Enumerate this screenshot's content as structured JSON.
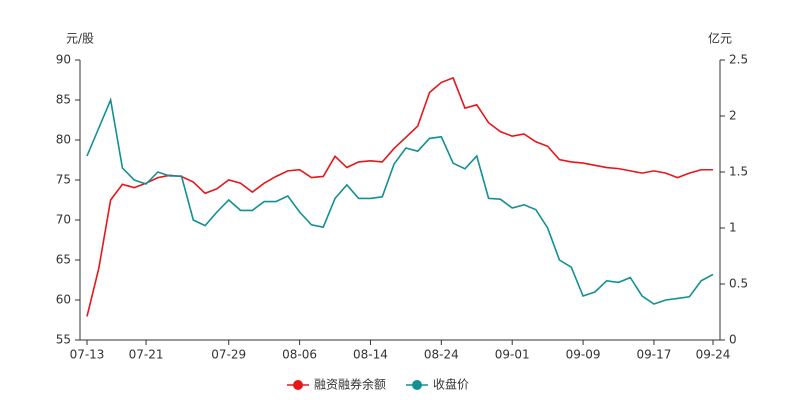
{
  "chart_data": {
    "type": "line",
    "y_label": "元/股",
    "y2_label": "亿元",
    "categories": [
      "07-13",
      null,
      null,
      null,
      null,
      "07-21",
      null,
      null,
      null,
      null,
      null,
      null,
      "07-29",
      null,
      null,
      null,
      null,
      null,
      "08-06",
      null,
      null,
      null,
      null,
      null,
      "08-14",
      null,
      null,
      null,
      null,
      null,
      "08-24",
      null,
      null,
      null,
      null,
      null,
      "09-01",
      null,
      null,
      null,
      null,
      null,
      "09-09",
      null,
      null,
      null,
      null,
      null,
      "09-17",
      null,
      null,
      null,
      null,
      "09-24"
    ],
    "series": [
      {
        "name": "融资融券余额",
        "color": "#e8161b",
        "axis": "y2",
        "values": [
          0.21,
          0.64,
          1.25,
          1.39,
          1.36,
          1.4,
          1.45,
          1.47,
          1.46,
          1.41,
          1.31,
          1.35,
          1.43,
          1.4,
          1.32,
          1.4,
          1.46,
          1.51,
          1.52,
          1.45,
          1.46,
          1.64,
          1.54,
          1.59,
          1.6,
          1.59,
          1.71,
          1.81,
          1.91,
          2.21,
          2.3,
          2.34,
          2.07,
          2.1,
          1.94,
          1.86,
          1.82,
          1.84,
          1.77,
          1.73,
          1.61,
          1.59,
          1.58,
          1.56,
          1.54,
          1.53,
          1.51,
          1.49,
          1.51,
          1.49,
          1.45,
          1.49,
          1.52,
          1.52
        ]
      },
      {
        "name": "收盘价",
        "color": "#139090",
        "values": [
          78,
          81.5,
          85,
          76.5,
          75,
          74.5,
          76,
          75.5,
          75.5,
          70,
          69.3,
          71,
          72.5,
          71.2,
          71.2,
          72.3,
          72.3,
          73,
          71,
          69.4,
          69.1,
          72.7,
          74.4,
          72.7,
          72.7,
          72.9,
          77,
          79,
          78.6,
          80.2,
          80.4,
          77.1,
          76.4,
          78,
          72.7,
          72.6,
          71.5,
          71.9,
          71.3,
          69,
          65,
          64.1,
          60.5,
          61,
          62.4,
          62.2,
          62.8,
          60.5,
          59.5,
          60,
          60.2,
          60.4,
          62.4,
          63.2
        ]
      }
    ],
    "ylim": [
      55,
      90
    ],
    "yticks": [
      55,
      60,
      65,
      70,
      75,
      80,
      85,
      90
    ],
    "y2lim": [
      0,
      2.5
    ],
    "y2ticks": [
      0,
      0.5,
      1,
      1.5,
      2,
      2.5
    ],
    "legend": "bottom"
  }
}
